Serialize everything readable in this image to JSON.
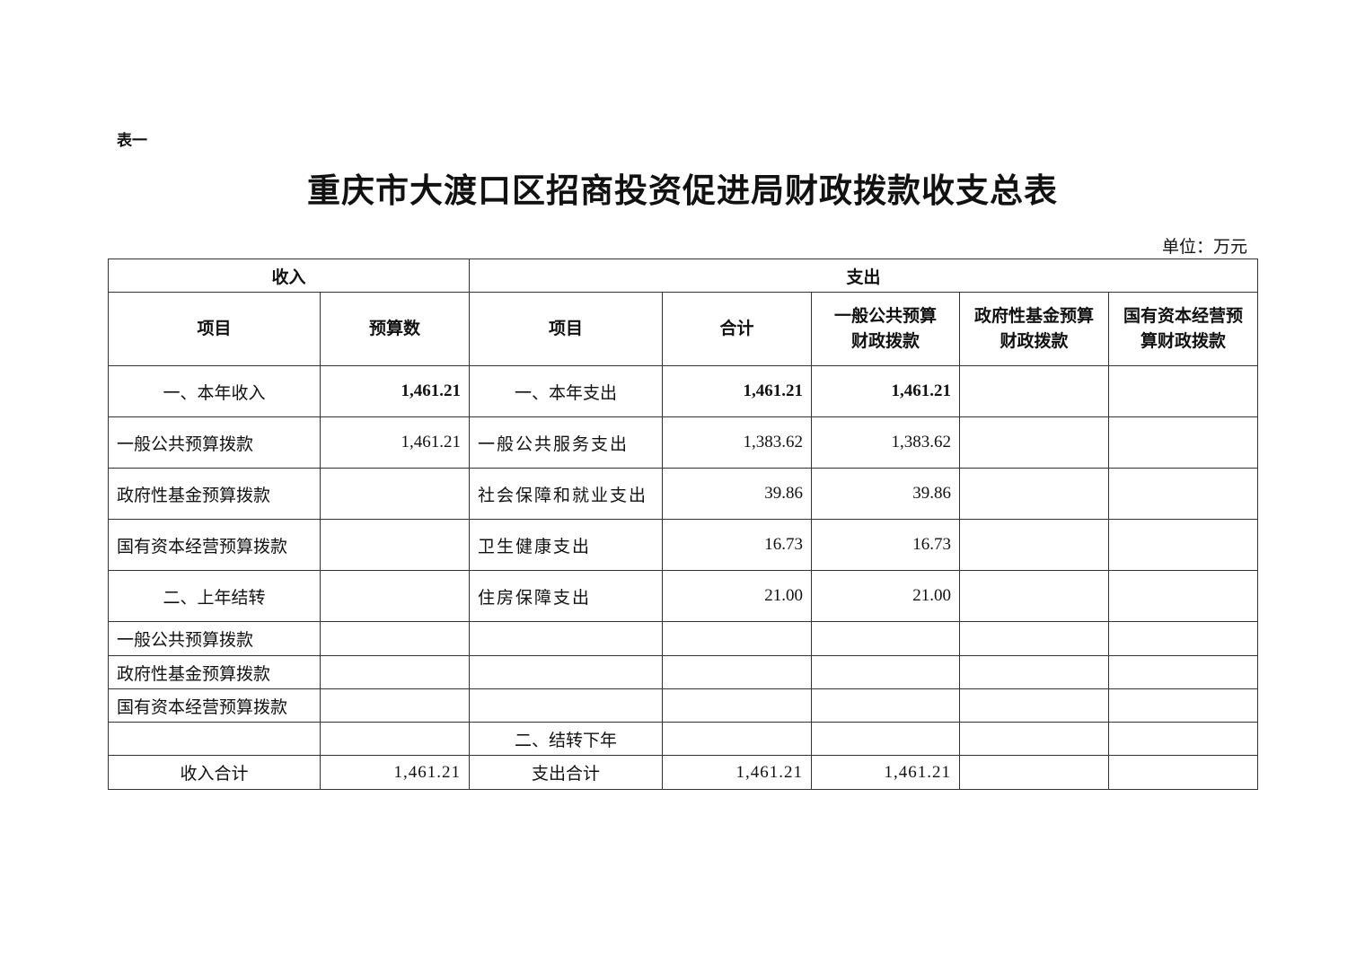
{
  "doc": {
    "table_label": "表一",
    "title": "重庆市大渡口区招商投资促进局财政拨款收支总表",
    "unit": "单位：万元"
  },
  "table": {
    "group_headers": {
      "income": "收入",
      "expense": "支出"
    },
    "columns": [
      "项目",
      "预算数",
      "项目",
      "合计",
      "一般公共预算财政拨款",
      "政府性基金预算财政拨款",
      "国有资本经营预算财政拨款"
    ],
    "rows": [
      [
        "一、本年收入",
        "1,461.21",
        "一、本年支出",
        "1,461.21",
        "1,461.21",
        "",
        ""
      ],
      [
        "一般公共预算拨款",
        "1,461.21",
        "一般公共服务支出",
        "1,383.62",
        "1,383.62",
        "",
        ""
      ],
      [
        "政府性基金预算拨款",
        "",
        "社会保障和就业支出",
        "39.86",
        "39.86",
        "",
        ""
      ],
      [
        "国有资本经营预算拨款",
        "",
        "卫生健康支出",
        "16.73",
        "16.73",
        "",
        ""
      ],
      [
        "二、上年结转",
        "",
        "住房保障支出",
        "21.00",
        "21.00",
        "",
        ""
      ],
      [
        "一般公共预算拨款",
        "",
        "",
        "",
        "",
        "",
        ""
      ],
      [
        "政府性基金预算拨款",
        "",
        "",
        "",
        "",
        "",
        ""
      ],
      [
        "国有资本经营预算拨款",
        "",
        "",
        "",
        "",
        "",
        ""
      ],
      [
        "",
        "",
        "二、结转下年",
        "",
        "",
        "",
        ""
      ],
      [
        "收入合计",
        "1,461.21",
        "支出合计",
        "1,461.21",
        "1,461.21",
        "",
        ""
      ]
    ]
  }
}
